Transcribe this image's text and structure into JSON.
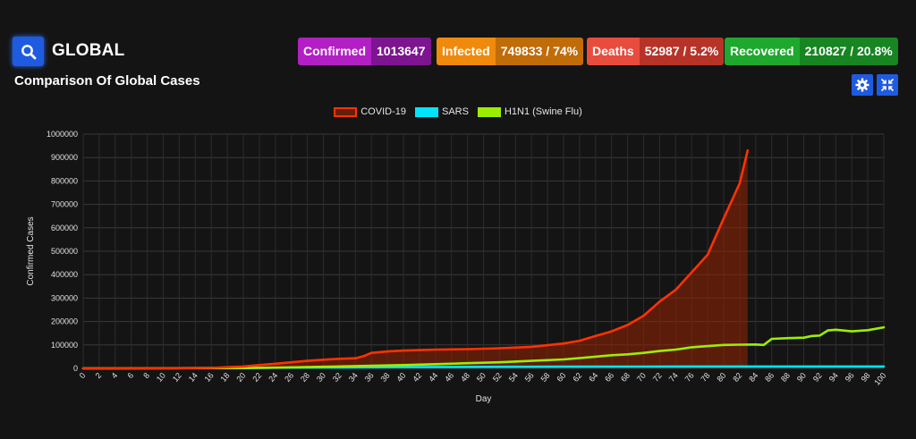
{
  "header": {
    "region": "GLOBAL",
    "subtitle": "Comparison Of Global Cases"
  },
  "stats": {
    "confirmed": {
      "label": "Confirmed",
      "value": "1013647",
      "color": "#b21fc4"
    },
    "infected": {
      "label": "Infected",
      "value": "749833 / 74%",
      "color": "#f08a0c"
    },
    "deaths": {
      "label": "Deaths",
      "value": "52987 / 5.2%",
      "color": "#e84c3d"
    },
    "recovered": {
      "label": "Recovered",
      "value": "210827 / 20.8%",
      "color": "#1fa82e"
    }
  },
  "icons": [
    "search-icon",
    "gear-icon",
    "compress-icon"
  ],
  "chart_data": {
    "type": "line",
    "xlabel": "Day",
    "ylabel": "Confirmed Cases",
    "xlim": [
      0,
      100
    ],
    "ylim": [
      0,
      1000000
    ],
    "yticks": [
      0,
      100000,
      200000,
      300000,
      400000,
      500000,
      600000,
      700000,
      800000,
      900000,
      1000000
    ],
    "grid": true,
    "legend_position": "top-center",
    "series": [
      {
        "name": "COVID-19",
        "color": "#ff3300",
        "fill": true,
        "points": [
          [
            0,
            0
          ],
          [
            10,
            500
          ],
          [
            16,
            2000
          ],
          [
            18,
            5000
          ],
          [
            20,
            8000
          ],
          [
            22,
            14000
          ],
          [
            24,
            20000
          ],
          [
            26,
            26000
          ],
          [
            28,
            32000
          ],
          [
            30,
            37000
          ],
          [
            32,
            41000
          ],
          [
            34,
            43000
          ],
          [
            35,
            52000
          ],
          [
            36,
            66000
          ],
          [
            38,
            72000
          ],
          [
            40,
            76000
          ],
          [
            44,
            80000
          ],
          [
            48,
            82000
          ],
          [
            52,
            86000
          ],
          [
            56,
            92000
          ],
          [
            60,
            106000
          ],
          [
            62,
            118000
          ],
          [
            64,
            138000
          ],
          [
            66,
            158000
          ],
          [
            68,
            185000
          ],
          [
            70,
            225000
          ],
          [
            72,
            285000
          ],
          [
            74,
            335000
          ],
          [
            76,
            410000
          ],
          [
            78,
            485000
          ],
          [
            80,
            640000
          ],
          [
            82,
            790000
          ],
          [
            83,
            930000
          ]
        ]
      },
      {
        "name": "SARS",
        "color": "#00e5ff",
        "fill": false,
        "points": [
          [
            0,
            0
          ],
          [
            20,
            2000
          ],
          [
            30,
            4000
          ],
          [
            40,
            5500
          ],
          [
            50,
            6500
          ],
          [
            60,
            7200
          ],
          [
            70,
            7600
          ],
          [
            80,
            7900
          ],
          [
            90,
            8000
          ],
          [
            100,
            8100
          ]
        ]
      },
      {
        "name": "H1N1 (Swine Flu)",
        "color": "#9bee00",
        "fill": false,
        "points": [
          [
            0,
            0
          ],
          [
            20,
            1000
          ],
          [
            24,
            3000
          ],
          [
            30,
            7000
          ],
          [
            36,
            11000
          ],
          [
            40,
            14000
          ],
          [
            44,
            18000
          ],
          [
            48,
            22000
          ],
          [
            52,
            26000
          ],
          [
            56,
            32000
          ],
          [
            60,
            38000
          ],
          [
            62,
            44000
          ],
          [
            64,
            50000
          ],
          [
            66,
            56000
          ],
          [
            68,
            60000
          ],
          [
            70,
            66000
          ],
          [
            72,
            74000
          ],
          [
            74,
            80000
          ],
          [
            76,
            90000
          ],
          [
            78,
            95000
          ],
          [
            80,
            100000
          ],
          [
            82,
            101000
          ],
          [
            84,
            102000
          ],
          [
            85,
            100000
          ],
          [
            86,
            126000
          ],
          [
            88,
            129000
          ],
          [
            90,
            131000
          ],
          [
            91,
            138000
          ],
          [
            92,
            140000
          ],
          [
            93,
            162000
          ],
          [
            94,
            165000
          ],
          [
            96,
            158000
          ],
          [
            98,
            163000
          ],
          [
            100,
            175000
          ]
        ]
      }
    ]
  }
}
